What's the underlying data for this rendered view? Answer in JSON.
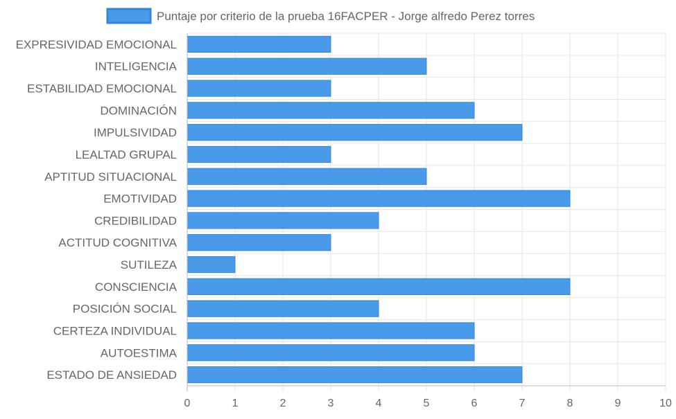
{
  "chart_data": {
    "type": "bar",
    "orientation": "horizontal",
    "title": "",
    "xlabel": "",
    "ylabel": "",
    "xlim": [
      0,
      10
    ],
    "grid": true,
    "legend_position": "top",
    "categories": [
      "EXPRESIVIDAD EMOCIONAL",
      "INTELIGENCIA",
      "ESTABILIDAD EMOCIONAL",
      "DOMINACIÓN",
      "IMPULSIVIDAD",
      "LEALTAD GRUPAL",
      "APTITUD SITUACIONAL",
      "EMOTIVIDAD",
      "CREDIBILIDAD",
      "ACTITUD COGNITIVA",
      "SUTILEZA",
      "CONSCIENCIA",
      "POSICIÓN SOCIAL",
      "CERTEZA INDIVIDUAL",
      "AUTOESTIMA",
      "ESTADO DE ANSIEDAD"
    ],
    "series": [
      {
        "name": "Puntaje por criterio de la prueba 16FACPER - Jorge alfredo Perez torres",
        "values": [
          3,
          5,
          3,
          6,
          7,
          3,
          5,
          8,
          4,
          3,
          1,
          8,
          4,
          6,
          6,
          7
        ],
        "color": "#4a9aea",
        "border_color": "#2f86e0"
      }
    ],
    "x_ticks": [
      "0",
      "1",
      "2",
      "3",
      "4",
      "5",
      "6",
      "7",
      "8",
      "9",
      "10"
    ],
    "grid_color": "#e6e6e6",
    "axis_color": "#bbbbbb"
  }
}
